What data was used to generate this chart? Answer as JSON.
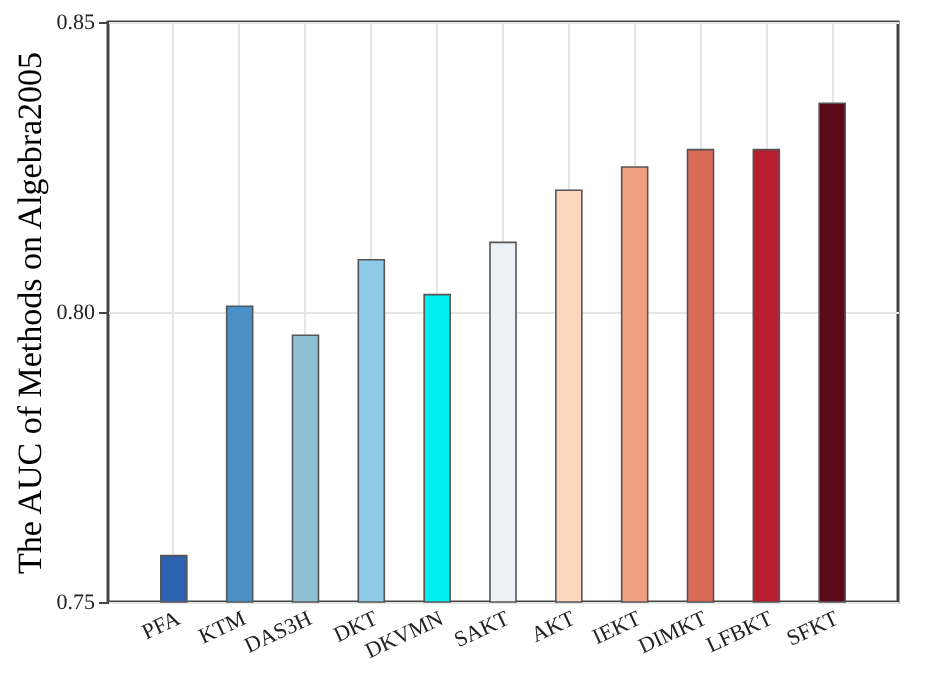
{
  "chart_data": {
    "type": "bar",
    "ylabel": "The AUC of Methods on Algebra2005",
    "categories": [
      "PFA",
      "KTM",
      "DAS3H",
      "DKT",
      "DKVMN",
      "SAKT",
      "AKT",
      "IEKT",
      "DIMKT",
      "LFBKT",
      "SFKT"
    ],
    "values": [
      0.758,
      0.801,
      0.796,
      0.809,
      0.803,
      0.812,
      0.821,
      0.825,
      0.828,
      0.828,
      0.836
    ],
    "colors": [
      "#2c62b0",
      "#4a90c8",
      "#8fbfd2",
      "#8ecbe8",
      "#00f0f0",
      "#eaf2f8",
      "#fbd6bd",
      "#f0a080",
      "#d96a55",
      "#b81e30",
      "#5c0a1a"
    ],
    "ylim": [
      0.75,
      0.85
    ],
    "yticks": [
      {
        "value": 0.75,
        "label": "0.75"
      },
      {
        "value": 0.8,
        "label": "0.80"
      },
      {
        "value": 0.85,
        "label": "0.85"
      }
    ],
    "grid": true
  }
}
